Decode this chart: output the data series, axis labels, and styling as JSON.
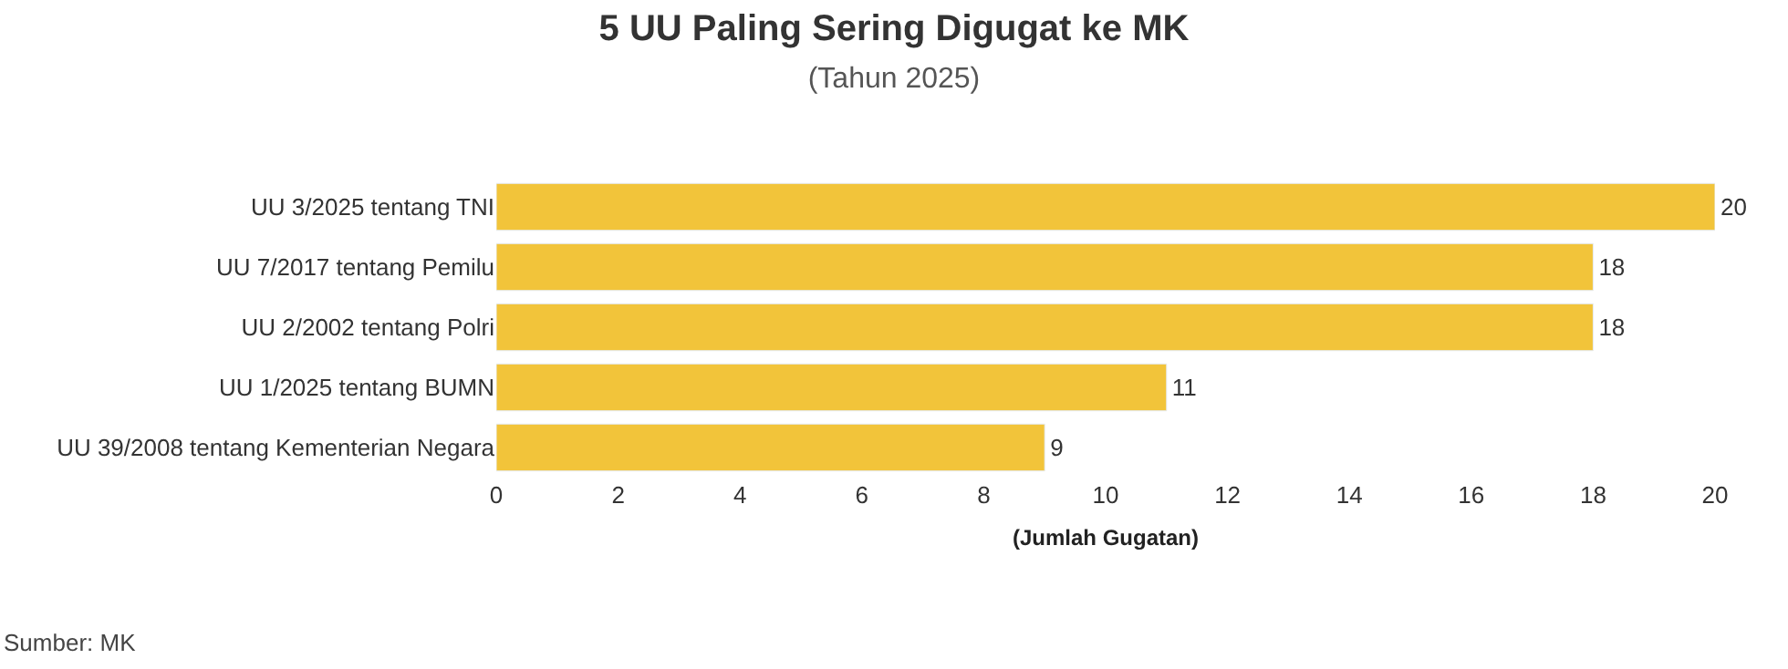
{
  "chart_data": {
    "type": "bar",
    "orientation": "horizontal",
    "title": "5 UU Paling Sering Digugat ke MK",
    "subtitle": "(Tahun 2025)",
    "xlabel": "(Jumlah Gugatan)",
    "categories": [
      "UU 3/2025 tentang TNI",
      "UU 7/2017 tentang Pemilu",
      "UU 2/2002 tentang Polri",
      "UU 1/2025 tentang BUMN",
      "UU 39/2008 tentang Kementerian Negara"
    ],
    "values": [
      20,
      18,
      18,
      11,
      9
    ],
    "color": "#f2c43a",
    "xlim": [
      0,
      20
    ],
    "xticks": [
      0,
      2,
      4,
      6,
      8,
      10,
      12,
      14,
      16,
      18,
      20
    ],
    "data_labels": true,
    "annotations": [
      "Sumber: MK"
    ]
  }
}
